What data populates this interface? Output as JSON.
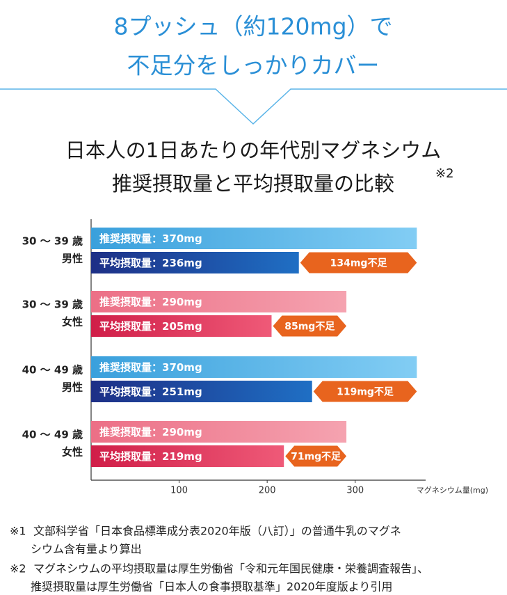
{
  "header": {
    "lines": [
      "8プッシュ（約120mg）で",
      "不足分をしっかりカバー"
    ]
  },
  "chart_data": {
    "type": "bar",
    "orientation": "horizontal",
    "title": [
      "日本人の1日あたりの年代別マグネシウム",
      "推奨摂取量と平均摂取量の比較"
    ],
    "title_note": "※2",
    "categories": [
      [
        "30 ～ 39 歳",
        "男性"
      ],
      [
        "30 ～ 39 歳",
        "女性"
      ],
      [
        "40 ～ 49 歳",
        "男性"
      ],
      [
        "40 ～ 49 歳",
        "女性"
      ]
    ],
    "series": [
      {
        "values": [
          370,
          290,
          370,
          290
        ],
        "value_labels": [
          "推奨摂取量：370mg",
          "推奨摂取量：290mg",
          "推奨摂取量：370mg",
          "推奨摂取量：290mg"
        ],
        "colors": [
          [
            "#3aa0dc",
            "#82cdf4"
          ],
          [
            "#ec6f86",
            "#f5a3b0"
          ],
          [
            "#3aa0dc",
            "#82cdf4"
          ],
          [
            "#ec6f86",
            "#f5a3b0"
          ]
        ]
      },
      {
        "values": [
          236,
          205,
          251,
          219
        ],
        "value_labels": [
          "平均摂取量：236mg",
          "平均摂取量：205mg",
          "平均摂取量：251mg",
          "平均摂取量：219mg"
        ],
        "colors": [
          [
            "#1d2f86",
            "#1f6fc4"
          ],
          [
            "#d01e48",
            "#ef5a78"
          ],
          [
            "#1d2f86",
            "#1f6fc4"
          ],
          [
            "#d01e48",
            "#ef5a78"
          ]
        ]
      },
      {
        "values": [
          134,
          85,
          119,
          71
        ],
        "value_labels": [
          "134mg不足",
          "85mg不足",
          "119mg不足",
          "71mg不足"
        ],
        "color": "#e8641e"
      }
    ],
    "xlim": [
      0,
      380
    ],
    "xticks": [
      100,
      200,
      300
    ],
    "xlabel": "マグネシウム量(mg)"
  },
  "footnotes": [
    {
      "mark": "※1",
      "lines": [
        "文部科学省「日本食品標準成分表2020年版（八訂）」の普通牛乳のマグネ",
        "シウム含有量より算出"
      ]
    },
    {
      "mark": "※2",
      "lines": [
        "マグネシウムの平均摂取量は厚生労働省「令和元年国民健康・栄養調査報告」、",
        "推奨摂取量は厚生労働省「日本人の食事摂取基準」2020年度版より引用"
      ]
    }
  ]
}
